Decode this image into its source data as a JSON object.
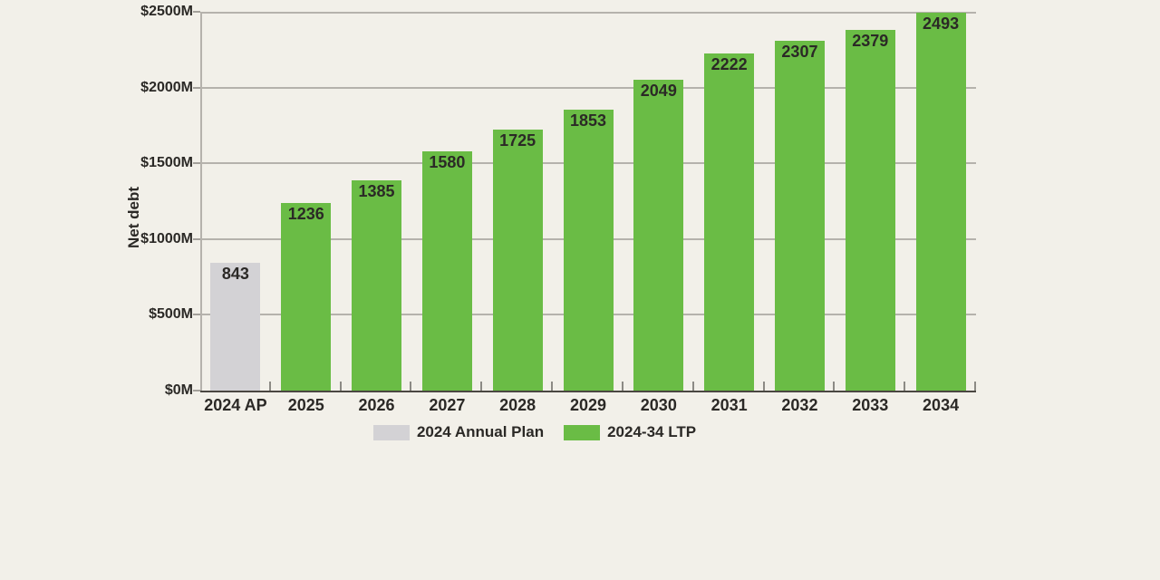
{
  "chart_data": {
    "type": "bar",
    "title": "",
    "xlabel": "",
    "ylabel": "Net debt",
    "ylim": [
      0,
      2500
    ],
    "grid": true,
    "legend_position": "bottom",
    "categories": [
      "2024 AP",
      "2025",
      "2026",
      "2027",
      "2028",
      "2029",
      "2030",
      "2031",
      "2032",
      "2033",
      "2034"
    ],
    "values": [
      843,
      1236,
      1385,
      1580,
      1725,
      1853,
      2049,
      2222,
      2307,
      2379,
      2493
    ],
    "bar_series": [
      0,
      1,
      1,
      1,
      1,
      1,
      1,
      1,
      1,
      1,
      1
    ],
    "series": [
      {
        "name": "2024 Annual Plan",
        "color": "#D3D2D5"
      },
      {
        "name": "2024-34 LTP",
        "color": "#6ABC45"
      }
    ],
    "y_ticks": [
      {
        "value": 0,
        "label": "$0M"
      },
      {
        "value": 500,
        "label": "$500M"
      },
      {
        "value": 1000,
        "label": "$1000M"
      },
      {
        "value": 1500,
        "label": "$1500M"
      },
      {
        "value": 2000,
        "label": "$2000M"
      },
      {
        "value": 2500,
        "label": "$2500M"
      }
    ]
  },
  "colors": {
    "background": "#F2F0E9",
    "gridline": "#B5B2AC",
    "baseline": "#4A4741",
    "text": "#2B2926",
    "annual_plan_bar": "#D3D2D5",
    "ltp_bar": "#6ABC45"
  }
}
